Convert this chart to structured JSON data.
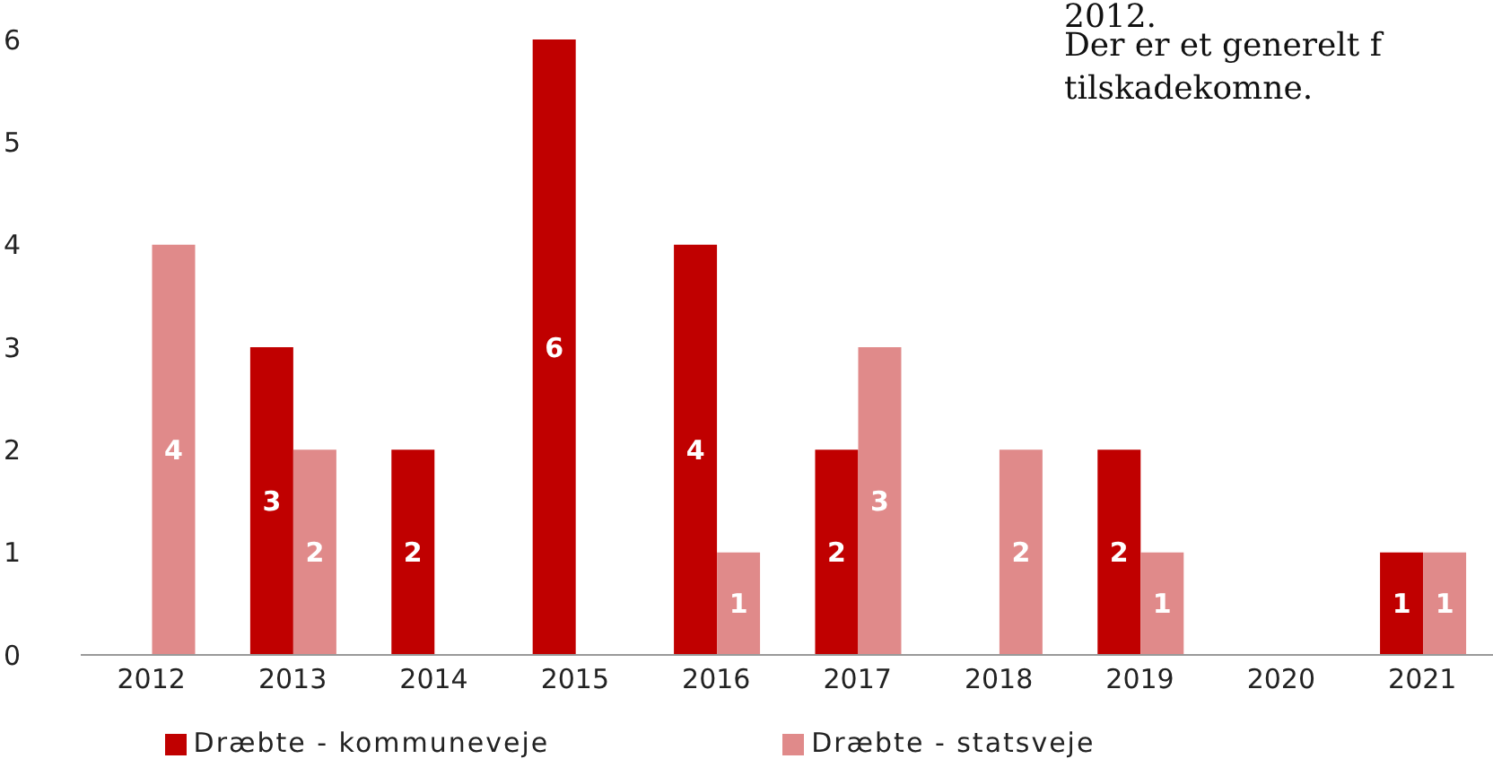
{
  "chart_data": {
    "type": "bar",
    "categories": [
      "2012",
      "2013",
      "2014",
      "2015",
      "2016",
      "2017",
      "2018",
      "2019",
      "2020",
      "2021"
    ],
    "series": [
      {
        "name": "Dræbte - kommuneveje",
        "color": "#c00000",
        "values": [
          null,
          3,
          2,
          6,
          4,
          2,
          null,
          2,
          null,
          1
        ]
      },
      {
        "name": "Dræbte - statsveje",
        "color": "#e08a8a",
        "values": [
          4,
          2,
          null,
          null,
          1,
          3,
          2,
          1,
          null,
          1
        ]
      }
    ],
    "ylim": [
      0,
      6
    ],
    "yticks": [
      0,
      1,
      2,
      3,
      4,
      5,
      6
    ],
    "grid": false,
    "legend": "bottom",
    "data_labels": true,
    "annotations": [
      "2012.",
      "Der er et generelt f\ntilskadekomne."
    ]
  }
}
